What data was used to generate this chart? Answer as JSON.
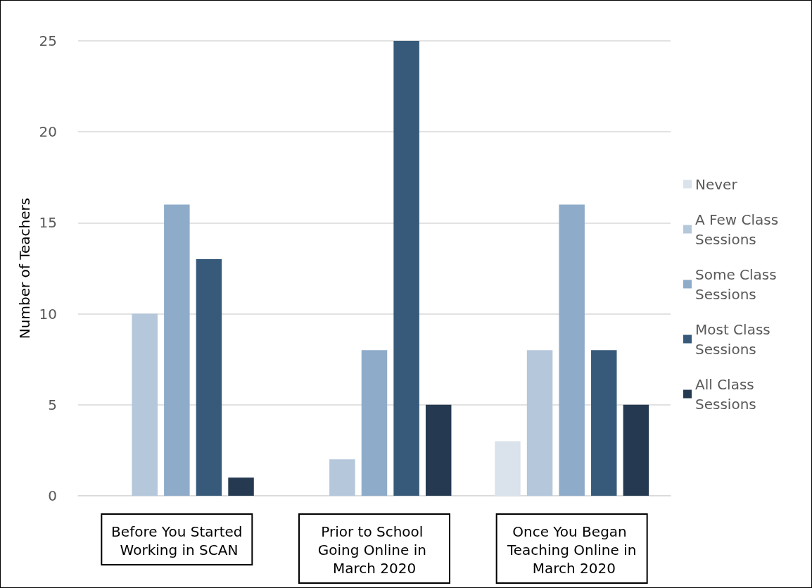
{
  "chart_data": {
    "type": "bar",
    "ylabel": "Number of Teachers",
    "categories": [
      "Before You Started Working in SCAN",
      "Prior to School Going Online in March 2020",
      "Once You Began Teaching Online in March 2020"
    ],
    "series": [
      {
        "name": "Never",
        "color": "#dae3ec",
        "values": [
          0,
          0,
          3
        ]
      },
      {
        "name": "A Few Class Sessions",
        "color": "#b4c7db",
        "values": [
          10,
          2,
          8
        ]
      },
      {
        "name": "Some Class Sessions",
        "color": "#8eabc9",
        "values": [
          16,
          8,
          16
        ]
      },
      {
        "name": "Most Class Sessions",
        "color": "#375a7a",
        "values": [
          13,
          25,
          8
        ]
      },
      {
        "name": "All Class Sessions",
        "color": "#253a51",
        "values": [
          1,
          5,
          5
        ]
      }
    ],
    "ylim": [
      0,
      25
    ],
    "yticks": [
      0,
      5,
      10,
      15,
      20,
      25
    ],
    "grid": "y",
    "legend": "right"
  }
}
